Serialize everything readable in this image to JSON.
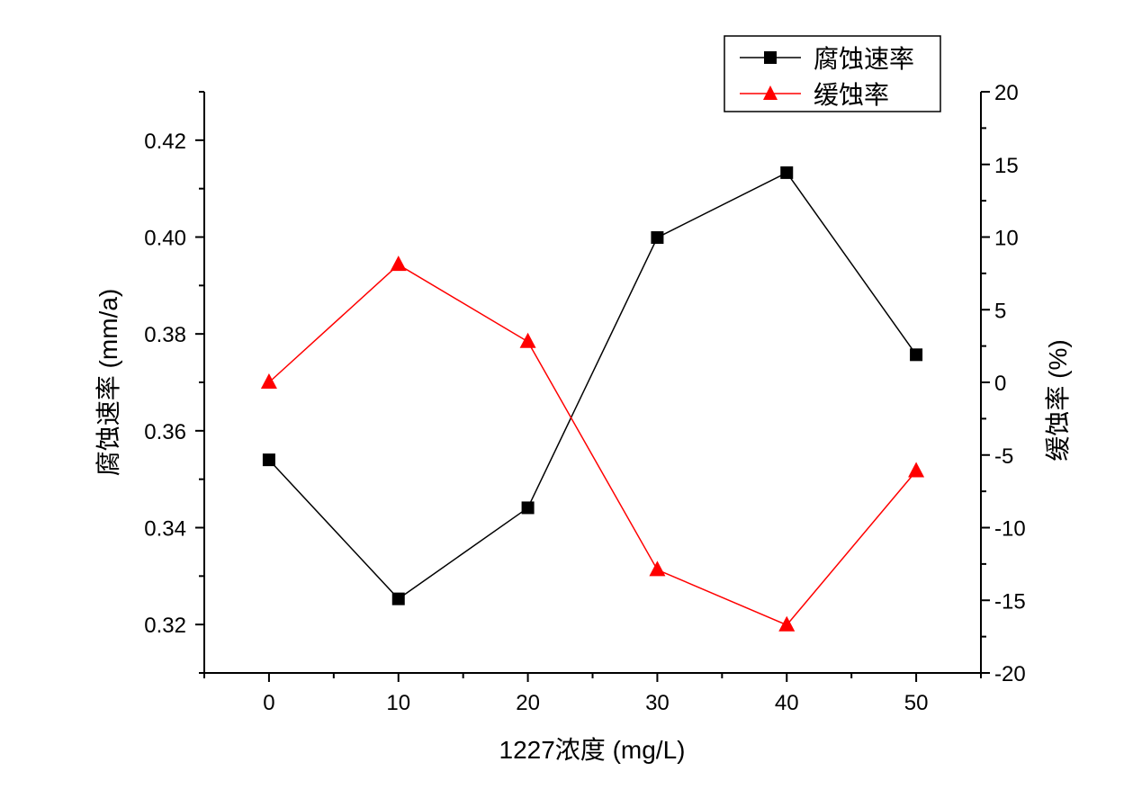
{
  "chart_data": {
    "type": "line",
    "title": "",
    "xlabel": "1227浓度 (mg/L)",
    "ylabel_left": "腐蚀速率 (mm/a)",
    "ylabel_right": "缓蚀率 (%)",
    "xlim": [
      -5,
      55
    ],
    "ylim_left": [
      0.31,
      0.43
    ],
    "ylim_right": [
      -20,
      20
    ],
    "x_ticks": [
      "0",
      "10",
      "20",
      "30",
      "40",
      "50"
    ],
    "y_left_ticks": [
      "0.32",
      "0.34",
      "0.36",
      "0.38",
      "0.40",
      "0.42"
    ],
    "y_right_ticks": [
      "-20",
      "-15",
      "-10",
      "-5",
      "0",
      "5",
      "10",
      "15",
      "20"
    ],
    "legend_position": "top-right",
    "grid": false,
    "series": [
      {
        "name": "腐蚀速率",
        "axis": "left",
        "color": "#000000",
        "marker": "square",
        "x": [
          0,
          10,
          20,
          30,
          40,
          50
        ],
        "y": [
          0.354,
          0.3253,
          0.3441,
          0.3999,
          0.4133,
          0.3757
        ]
      },
      {
        "name": "缓蚀率",
        "axis": "right",
        "color": "#ff0000",
        "marker": "triangle",
        "x": [
          0,
          10,
          20,
          30,
          40,
          50
        ],
        "y": [
          0.0,
          8.1,
          2.8,
          -12.9,
          -16.7,
          -6.1
        ]
      }
    ]
  }
}
